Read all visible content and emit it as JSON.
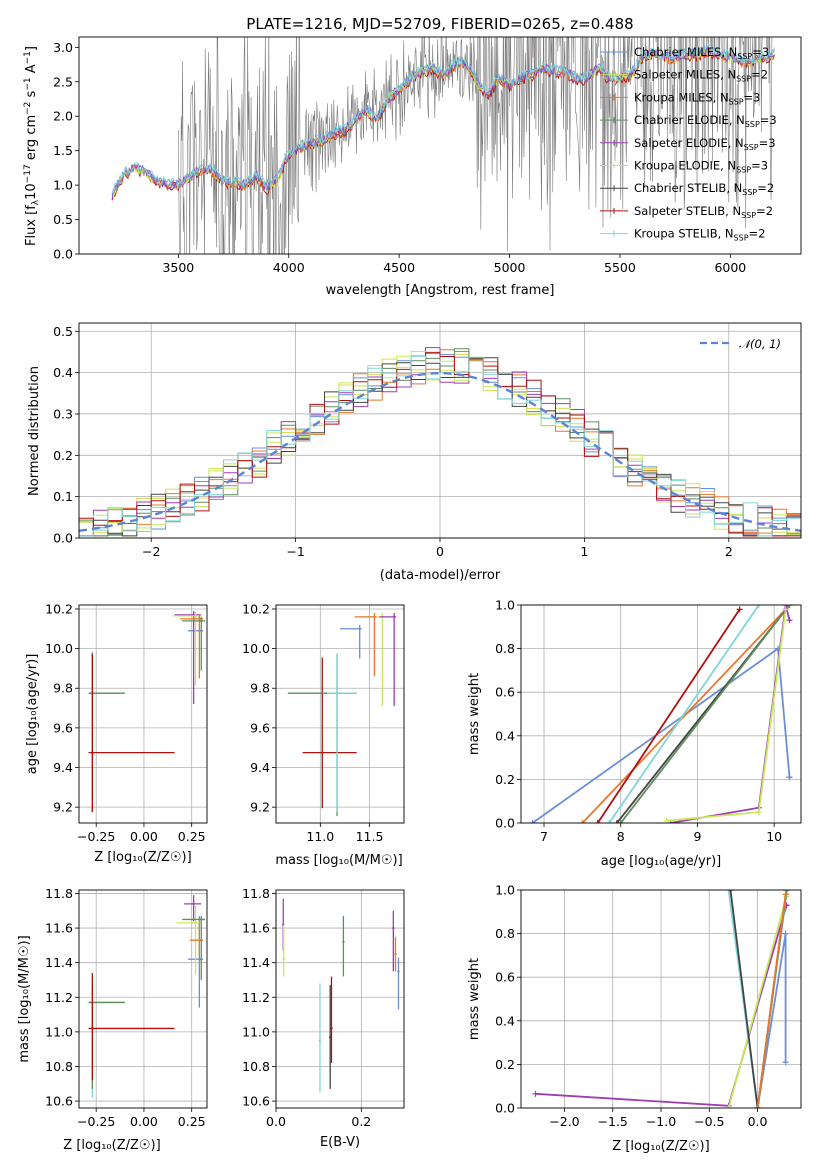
{
  "colors": {
    "chabrier_miles": "#6a8fd8",
    "salpeter_miles": "#dcdc55",
    "kroupa_miles": "#e8772c",
    "chabrier_elodie": "#5f8f5f",
    "salpeter_elodie": "#a03cb4",
    "kroupa_elodie": "#c8e85a",
    "chabrier_stelib": "#444444",
    "salpeter_stelib": "#b01010",
    "kroupa_stelib": "#7fd6d8",
    "spectrum_gray": "#7a7a7a",
    "normal_curve": "#5b84d6"
  },
  "chart_data": [
    {
      "id": "spectrum",
      "type": "line",
      "title": "PLATE=1216, MJD=52709, FIBERID=0265, z=0.488",
      "xlabel": "wavelength [Angstrom, rest frame]",
      "ylabel_parts": [
        "Flux [f",
        "λ",
        "10",
        "−17",
        " erg cm",
        "−2",
        " s",
        "−1",
        " A",
        "−1",
        "]"
      ],
      "xlim": [
        3050,
        6320
      ],
      "ylim": [
        0,
        3.15
      ],
      "xticks": [
        "3500",
        "4000",
        "4500",
        "5000",
        "5500",
        "6000"
      ],
      "yticks": [
        "0.0",
        "0.5",
        "1.0",
        "1.5",
        "2.0",
        "2.5",
        "3.0"
      ],
      "continuum": {
        "x": [
          3200,
          3250,
          3300,
          3350,
          3400,
          3450,
          3500,
          3550,
          3600,
          3650,
          3700,
          3750,
          3800,
          3850,
          3900,
          3950,
          4000,
          4050,
          4100,
          4150,
          4200,
          4250,
          4300,
          4350,
          4400,
          4450,
          4500,
          4550,
          4600,
          4650,
          4700,
          4750,
          4800,
          4850,
          4900,
          4950,
          5000,
          5050,
          5100,
          5150,
          5200,
          5250,
          5300,
          5350,
          5400,
          5450,
          5500,
          5550,
          5600,
          5650,
          5700,
          5750,
          5800,
          5850,
          5900,
          5950,
          6000,
          6050,
          6100,
          6150,
          6200
        ],
        "y": [
          0.85,
          1.15,
          1.25,
          1.2,
          1.05,
          1.0,
          1.0,
          1.12,
          1.22,
          1.22,
          1.05,
          1.05,
          1.0,
          1.15,
          0.95,
          1.1,
          1.45,
          1.55,
          1.6,
          1.65,
          1.75,
          1.8,
          1.95,
          2.1,
          1.95,
          2.25,
          2.4,
          2.55,
          2.65,
          2.7,
          2.6,
          2.75,
          2.8,
          2.5,
          2.3,
          2.55,
          2.45,
          2.55,
          2.6,
          2.7,
          2.65,
          2.65,
          2.55,
          2.55,
          2.7,
          2.55,
          2.55,
          2.6,
          2.85,
          2.9,
          2.85,
          2.85,
          2.9,
          2.9,
          2.95,
          2.9,
          2.85,
          2.8,
          2.8,
          2.85,
          2.9
        ]
      },
      "legend": [
        {
          "text": "Chabrier MILES, N",
          "sub": "SSP",
          "tail": "=3",
          "color": "chabrier_miles"
        },
        {
          "text": "Salpeter MILES, N",
          "sub": "SSP",
          "tail": "=2",
          "color": "salpeter_miles"
        },
        {
          "text": "Kroupa MILES, N",
          "sub": "SSP",
          "tail": "=3",
          "color": "kroupa_miles"
        },
        {
          "text": "Chabrier ELODIE, N",
          "sub": "SSP",
          "tail": "=3",
          "color": "chabrier_elodie"
        },
        {
          "text": "Salpeter ELODIE, N",
          "sub": "SSP",
          "tail": "=3",
          "color": "salpeter_elodie"
        },
        {
          "text": "Kroupa ELODIE, N",
          "sub": "SSP",
          "tail": "=3",
          "color": "kroupa_elodie"
        },
        {
          "text": "Chabrier STELIB, N",
          "sub": "SSP",
          "tail": "=2",
          "color": "chabrier_stelib"
        },
        {
          "text": "Salpeter STELIB, N",
          "sub": "SSP",
          "tail": "=2",
          "color": "salpeter_stelib"
        },
        {
          "text": "Kroupa STELIB, N",
          "sub": "SSP",
          "tail": "=2",
          "color": "kroupa_stelib"
        }
      ]
    },
    {
      "id": "residuals",
      "type": "line",
      "xlabel": "(data-model)/error",
      "ylabel": "Normed distribution",
      "xlim": [
        -2.5,
        2.5
      ],
      "ylim": [
        0,
        0.52
      ],
      "xticks": [
        "−2",
        "−1",
        "0",
        "1",
        "2"
      ],
      "yticks": [
        "0.0",
        "0.1",
        "0.2",
        "0.3",
        "0.4",
        "0.5"
      ],
      "legend_label": "𝒩(0, 1)",
      "histogram_bins": [
        -2.5,
        -2.4,
        -2.3,
        -2.2,
        -2.1,
        -2.0,
        -1.9,
        -1.8,
        -1.7,
        -1.6,
        -1.5,
        -1.4,
        -1.3,
        -1.2,
        -1.1,
        -1.0,
        -0.9,
        -0.8,
        -0.7,
        -0.6,
        -0.5,
        -0.4,
        -0.3,
        -0.2,
        -0.1,
        0.0,
        0.1,
        0.2,
        0.3,
        0.4,
        0.5,
        0.6,
        0.7,
        0.8,
        0.9,
        1.0,
        1.1,
        1.2,
        1.3,
        1.4,
        1.5,
        1.6,
        1.7,
        1.8,
        1.9,
        2.0,
        2.1,
        2.2,
        2.3,
        2.4,
        2.5
      ]
    },
    {
      "id": "age_vs_z",
      "type": "scatter",
      "xlabel": "Z [log₁₀(Z/Z☉)]",
      "ylabel": "age  [log₁₀(age/yr)]",
      "xlim": [
        -0.34,
        0.33
      ],
      "ylim": [
        9.12,
        10.22
      ],
      "xticks": [
        "−0.25",
        "0.00",
        "0.25"
      ],
      "yticks": [
        "9.2",
        "9.4",
        "9.6",
        "9.8",
        "10.0",
        "10.2"
      ],
      "points": [
        {
          "x": -0.27,
          "y": 9.775,
          "xerr": [
            0.02,
            0.17
          ],
          "yerr": [
            0.6,
            0.21
          ],
          "c": "kroupa_stelib"
        },
        {
          "x": -0.27,
          "y": 9.775,
          "xerr": [
            0.02,
            0.17
          ],
          "yerr": [
            0.6,
            0.2
          ],
          "c": "chabrier_elodie"
        },
        {
          "x": -0.27,
          "y": 9.475,
          "xerr": [
            0.02,
            0.43
          ],
          "yerr": [
            0.3,
            0.5
          ],
          "c": "salpeter_stelib"
        },
        {
          "x": 0.29,
          "y": 10.09,
          "xerr": [
            0.06,
            0.02
          ],
          "yerr": [
            0.0,
            0.0
          ],
          "c": "chabrier_miles"
        },
        {
          "x": 0.26,
          "y": 10.17,
          "xerr": [
            0.1,
            0.04
          ],
          "yerr": [
            0.45,
            0.02
          ],
          "c": "salpeter_elodie"
        },
        {
          "x": 0.27,
          "y": 10.165,
          "xerr": [
            0.12,
            0.03
          ],
          "yerr": [
            0.35,
            0.02
          ],
          "c": "kroupa_elodie"
        },
        {
          "x": 0.29,
          "y": 10.15,
          "xerr": [
            0.1,
            0.02
          ],
          "yerr": [
            0.3,
            0.02
          ],
          "c": "kroupa_miles"
        },
        {
          "x": 0.3,
          "y": 10.14,
          "xerr": [
            0.1,
            0.02
          ],
          "yerr": [
            0.25,
            0.02
          ],
          "c": "chabrier_elodie"
        }
      ]
    },
    {
      "id": "age_vs_mass",
      "type": "scatter",
      "xlabel": "mass [log₁₀(M/M☉)]",
      "ylabel": "",
      "xlim": [
        10.55,
        11.85
      ],
      "ylim": [
        9.12,
        10.22
      ],
      "xticks": [
        "11.0",
        "11.5"
      ],
      "yticks": [
        "9.2",
        "9.4",
        "9.6",
        "9.8",
        "10.0",
        "10.2"
      ],
      "points": [
        {
          "x": 11.02,
          "y": 9.475,
          "xerr": [
            0.2,
            0.35
          ],
          "yerr": [
            0.28,
            0.48
          ],
          "c": "salpeter_stelib"
        },
        {
          "x": 11.17,
          "y": 9.775,
          "xerr": [
            0.5,
            0.2
          ],
          "yerr": [
            0.62,
            0.2
          ],
          "c": "chabrier_elodie"
        },
        {
          "x": 11.17,
          "y": 9.775,
          "xerr": [
            0.1,
            0.2
          ],
          "yerr": [
            0.6,
            0.2
          ],
          "c": "kroupa_stelib"
        },
        {
          "x": 11.4,
          "y": 10.1,
          "xerr": [
            0.2,
            0.02
          ],
          "yerr": [
            0.15,
            0.02
          ],
          "c": "chabrier_miles"
        },
        {
          "x": 11.63,
          "y": 10.16,
          "xerr": [
            0.2,
            0.02
          ],
          "yerr": [
            0.45,
            0.02
          ],
          "c": "kroupa_elodie"
        },
        {
          "x": 11.75,
          "y": 10.16,
          "xerr": [
            0.15,
            0.02
          ],
          "yerr": [
            0.45,
            0.02
          ],
          "c": "salpeter_elodie"
        },
        {
          "x": 11.55,
          "y": 10.16,
          "xerr": [
            0.2,
            0.02
          ],
          "yerr": [
            0.3,
            0.02
          ],
          "c": "kroupa_miles"
        }
      ]
    },
    {
      "id": "mass_weight_age",
      "type": "line",
      "xlabel": "age  [log₁₀(age/yr)]",
      "ylabel": "mass weight",
      "xlim": [
        6.7,
        10.35
      ],
      "ylim": [
        0,
        1
      ],
      "xticks": [
        "7",
        "8",
        "9",
        "10"
      ],
      "yticks": [
        "0.0",
        "0.2",
        "0.4",
        "0.6",
        "0.8",
        "1.0"
      ],
      "series": [
        {
          "c": "chabrier_miles",
          "x": [
            6.85,
            10.05,
            10.2,
            10.2
          ],
          "y": [
            0.0,
            0.8,
            0.21,
            0.21
          ]
        },
        {
          "c": "kroupa_miles",
          "x": [
            7.5,
            10.15
          ],
          "y": [
            0.0,
            0.98
          ]
        },
        {
          "c": "salpeter_stelib",
          "x": [
            7.7,
            9.55
          ],
          "y": [
            0.0,
            0.98
          ]
        },
        {
          "c": "kroupa_stelib",
          "x": [
            7.85,
            9.8
          ],
          "y": [
            0.0,
            1.0
          ]
        },
        {
          "c": "chabrier_stelib",
          "x": [
            7.95,
            10.2
          ],
          "y": [
            0.0,
            1.0
          ]
        },
        {
          "c": "chabrier_elodie",
          "x": [
            8.0,
            10.2
          ],
          "y": [
            0.0,
            1.0
          ]
        },
        {
          "c": "salpeter_elodie",
          "x": [
            8.65,
            9.8,
            10.15,
            10.2
          ],
          "y": [
            0.0,
            0.07,
            1.0,
            0.93
          ]
        },
        {
          "c": "kroupa_elodie",
          "x": [
            8.6,
            9.8,
            10.15
          ],
          "y": [
            0.01,
            0.05,
            0.98
          ]
        }
      ]
    },
    {
      "id": "mass_vs_z",
      "type": "scatter",
      "xlabel": "Z [log₁₀(Z/Z☉)]",
      "ylabel": "mass [log₁₀(M/M☉)]",
      "xlim": [
        -0.34,
        0.33
      ],
      "ylim": [
        10.56,
        11.82
      ],
      "xticks": [
        "−0.25",
        "0.00",
        "0.25"
      ],
      "yticks": [
        "10.6",
        "10.8",
        "11.0",
        "11.2",
        "11.4",
        "11.6",
        "11.8"
      ],
      "points": [
        {
          "x": -0.27,
          "y": 11.17,
          "xerr": [
            0.02,
            0.17
          ],
          "yerr": [
            0.55,
            0.15
          ],
          "c": "kroupa_stelib"
        },
        {
          "x": -0.27,
          "y": 11.17,
          "xerr": [
            0.02,
            0.17
          ],
          "yerr": [
            0.5,
            0.1
          ],
          "c": "chabrier_elodie"
        },
        {
          "x": -0.27,
          "y": 11.02,
          "xerr": [
            0.02,
            0.43
          ],
          "yerr": [
            0.3,
            0.32
          ],
          "c": "salpeter_stelib"
        },
        {
          "x": 0.29,
          "y": 11.42,
          "xerr": [
            0.06,
            0.02
          ],
          "yerr": [
            0.28,
            0.25
          ],
          "c": "chabrier_miles"
        },
        {
          "x": 0.26,
          "y": 11.74,
          "xerr": [
            0.05,
            0.04
          ],
          "yerr": [
            0.1,
            0.05
          ],
          "c": "salpeter_elodie"
        },
        {
          "x": 0.27,
          "y": 11.63,
          "xerr": [
            0.1,
            0.03
          ],
          "yerr": [
            0.3,
            0.1
          ],
          "c": "kroupa_elodie"
        },
        {
          "x": 0.29,
          "y": 11.53,
          "xerr": [
            0.05,
            0.02
          ],
          "yerr": [
            0.1,
            0.1
          ],
          "c": "kroupa_miles"
        },
        {
          "x": 0.3,
          "y": 11.65,
          "xerr": [
            0.1,
            0.02
          ],
          "yerr": [
            0.35,
            0.02
          ],
          "c": "chabrier_elodie"
        }
      ]
    },
    {
      "id": "mass_vs_ebv",
      "type": "scatter",
      "xlabel": "E(B-V)",
      "ylabel": "",
      "xlim": [
        0,
        0.3
      ],
      "ylim": [
        10.56,
        11.82
      ],
      "xticks": [
        "0.0",
        "0.2"
      ],
      "yticks": [
        "10.6",
        "10.8",
        "11.0",
        "11.2",
        "11.4",
        "11.6",
        "11.8"
      ],
      "points": [
        {
          "x": 0.017,
          "y": 11.62,
          "yerr": [
            0.15,
            0.15
          ],
          "c": "salpeter_elodie"
        },
        {
          "x": 0.018,
          "y": 11.42,
          "yerr": [
            0.1,
            0.2
          ],
          "c": "kroupa_elodie"
        },
        {
          "x": 0.103,
          "y": 10.95,
          "yerr": [
            0.3,
            0.33
          ],
          "c": "kroupa_stelib"
        },
        {
          "x": 0.127,
          "y": 10.97,
          "yerr": [
            0.3,
            0.3
          ],
          "c": "chabrier_stelib"
        },
        {
          "x": 0.13,
          "y": 11.02,
          "yerr": [
            0.2,
            0.3
          ],
          "c": "salpeter_stelib"
        },
        {
          "x": 0.158,
          "y": 11.52,
          "yerr": [
            0.2,
            0.15
          ],
          "c": "chabrier_elodie"
        },
        {
          "x": 0.275,
          "y": 11.6,
          "yerr": [
            0.25,
            0.1
          ],
          "c": "salpeter_elodie"
        },
        {
          "x": 0.28,
          "y": 11.45,
          "yerr": [
            0.1,
            0.1
          ],
          "c": "kroupa_miles"
        },
        {
          "x": 0.287,
          "y": 11.35,
          "yerr": [
            0.22,
            0.08
          ],
          "c": "chabrier_miles"
        }
      ]
    },
    {
      "id": "mass_weight_z",
      "type": "line",
      "xlabel": "Z [log₁₀(Z/Z☉)]",
      "ylabel": "mass weight",
      "xlim": [
        -2.45,
        0.45
      ],
      "ylim": [
        0,
        1
      ],
      "xticks": [
        "−2.0",
        "−1.5",
        "−1.0",
        "−0.5",
        "0.0"
      ],
      "yticks": [
        "0.0",
        "0.2",
        "0.4",
        "0.6",
        "0.8",
        "1.0"
      ],
      "series": [
        {
          "c": "salpeter_elodie",
          "x": [
            -2.3,
            -0.3,
            0.3,
            0.3
          ],
          "y": [
            0.065,
            0.01,
            0.93,
            0.93
          ]
        },
        {
          "c": "kroupa_elodie",
          "x": [
            -0.3,
            0.3
          ],
          "y": [
            0.0,
            0.97
          ]
        },
        {
          "c": "chabrier_miles",
          "x": [
            0.0,
            0.29,
            0.29
          ],
          "y": [
            0.0,
            0.8,
            0.21
          ]
        },
        {
          "c": "kroupa_stelib",
          "x": [
            -0.3,
            0.0,
            0.3
          ],
          "y": [
            1.0,
            0.0,
            0.98
          ]
        },
        {
          "c": "chabrier_stelib",
          "x": [
            -0.28,
            0.0,
            0.3
          ],
          "y": [
            1.0,
            0.0,
            1.0
          ]
        },
        {
          "c": "chabrier_elodie",
          "x": [
            0.0,
            0.3
          ],
          "y": [
            0.0,
            1.0
          ]
        },
        {
          "c": "kroupa_miles",
          "x": [
            0.0,
            0.29
          ],
          "y": [
            0.0,
            0.98
          ]
        }
      ]
    }
  ]
}
